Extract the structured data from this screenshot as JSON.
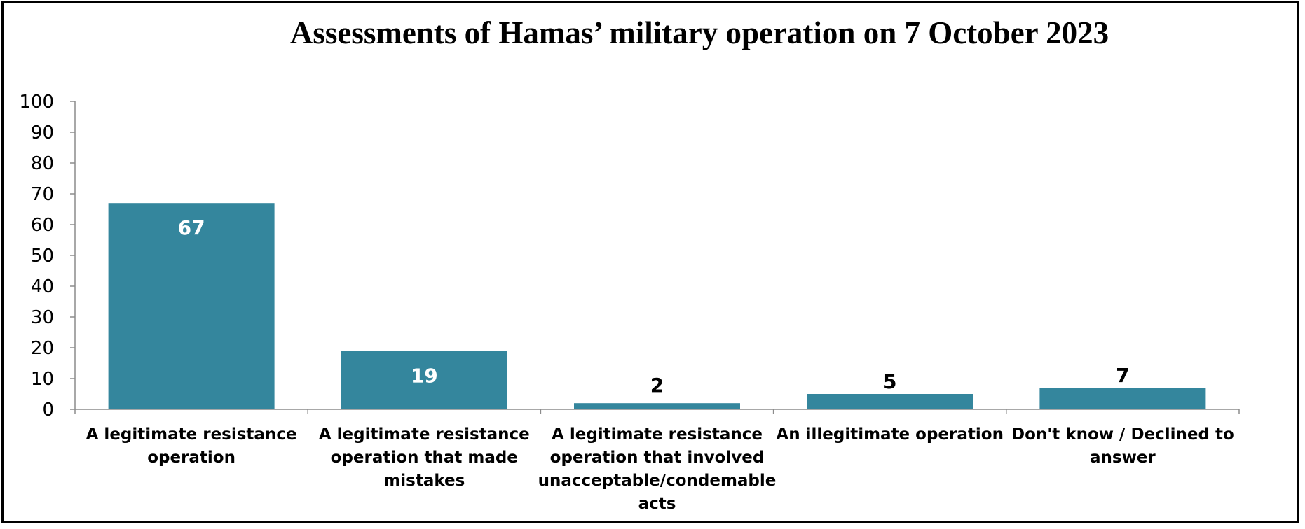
{
  "chart_data": {
    "type": "bar",
    "title": "Assessments of Hamas’ military operation on 7 October 2023",
    "xlabel": "",
    "ylabel": "",
    "ylim": [
      0,
      100
    ],
    "yticks": [
      0,
      10,
      20,
      30,
      40,
      50,
      60,
      70,
      80,
      90,
      100
    ],
    "grid": false,
    "legend": "none",
    "bar_color": "#34869D",
    "categories": [
      [
        "A legitimate resistance",
        "operation"
      ],
      [
        "A legitimate resistance",
        "operation that made",
        "mistakes"
      ],
      [
        "A legitimate resistance",
        "operation that involved",
        "unacceptable/condemable",
        "acts"
      ],
      [
        "An illegitimate operation"
      ],
      [
        "Don't know / Declined to",
        "answer"
      ]
    ],
    "values": [
      67,
      19,
      2,
      5,
      7
    ],
    "data_labels": [
      "67",
      "19",
      "2",
      "5",
      "7"
    ]
  }
}
